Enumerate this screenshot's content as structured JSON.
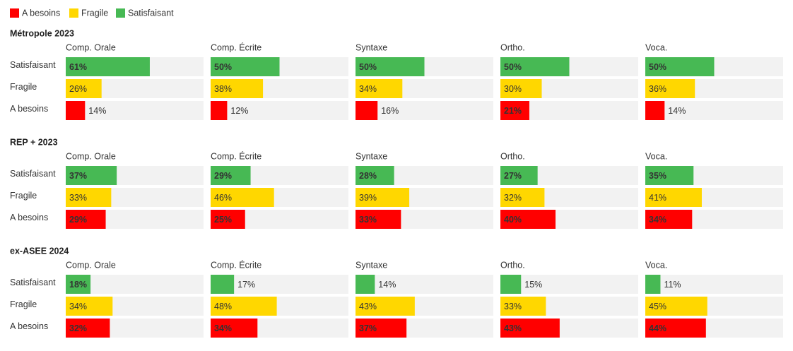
{
  "chart_data": [
    {
      "type": "bar",
      "title": "Métropole 2023",
      "categories": [
        "Comp. Orale",
        "Comp. Écrite",
        "Syntaxe",
        "Ortho.",
        "Voca."
      ],
      "xlim": [
        0,
        100
      ],
      "series": [
        {
          "name": "Satisfaisant",
          "color": "#47b954",
          "values": [
            61,
            50,
            50,
            50,
            50
          ],
          "value_labels": [
            "61%",
            "50%",
            "50%",
            "50%",
            "50%"
          ]
        },
        {
          "name": "Fragile",
          "color": "#ffd700",
          "values": [
            26,
            38,
            34,
            30,
            36
          ],
          "value_labels": [
            "26%",
            "38%",
            "34%",
            "30%",
            "36%"
          ]
        },
        {
          "name": "A besoins",
          "color": "#ff0000",
          "values": [
            14,
            12,
            16,
            21,
            14
          ],
          "value_labels": [
            "14%",
            "12%",
            "16%",
            "21%",
            "14%"
          ]
        }
      ]
    },
    {
      "type": "bar",
      "title": "REP + 2023",
      "categories": [
        "Comp. Orale",
        "Comp. Écrite",
        "Syntaxe",
        "Ortho.",
        "Voca."
      ],
      "xlim": [
        0,
        100
      ],
      "series": [
        {
          "name": "Satisfaisant",
          "color": "#47b954",
          "values": [
            37,
            29,
            28,
            27,
            35
          ],
          "value_labels": [
            "37%",
            "29%",
            "28%",
            "27%",
            "35%"
          ]
        },
        {
          "name": "Fragile",
          "color": "#ffd700",
          "values": [
            33,
            46,
            39,
            32,
            41
          ],
          "value_labels": [
            "33%",
            "46%",
            "39%",
            "32%",
            "41%"
          ]
        },
        {
          "name": "A besoins",
          "color": "#ff0000",
          "values": [
            29,
            25,
            33,
            40,
            34
          ],
          "value_labels": [
            "29%",
            "25%",
            "33%",
            "40%",
            "34%"
          ]
        }
      ]
    },
    {
      "type": "bar",
      "title": "ex-ASEE 2024",
      "categories": [
        "Comp. Orale",
        "Comp. Écrite",
        "Syntaxe",
        "Ortho.",
        "Voca."
      ],
      "xlim": [
        0,
        100
      ],
      "series": [
        {
          "name": "Satisfaisant",
          "color": "#47b954",
          "values": [
            18,
            17,
            14,
            15,
            11
          ],
          "value_labels": [
            "18%",
            "17%",
            "14%",
            "15%",
            "11%"
          ]
        },
        {
          "name": "Fragile",
          "color": "#ffd700",
          "values": [
            34,
            48,
            43,
            33,
            45
          ],
          "value_labels": [
            "34%",
            "48%",
            "43%",
            "33%",
            "45%"
          ]
        },
        {
          "name": "A besoins",
          "color": "#ff0000",
          "values": [
            32,
            34,
            37,
            43,
            44
          ],
          "value_labels": [
            "32%",
            "34%",
            "37%",
            "43%",
            "44%"
          ]
        }
      ]
    }
  ]
}
